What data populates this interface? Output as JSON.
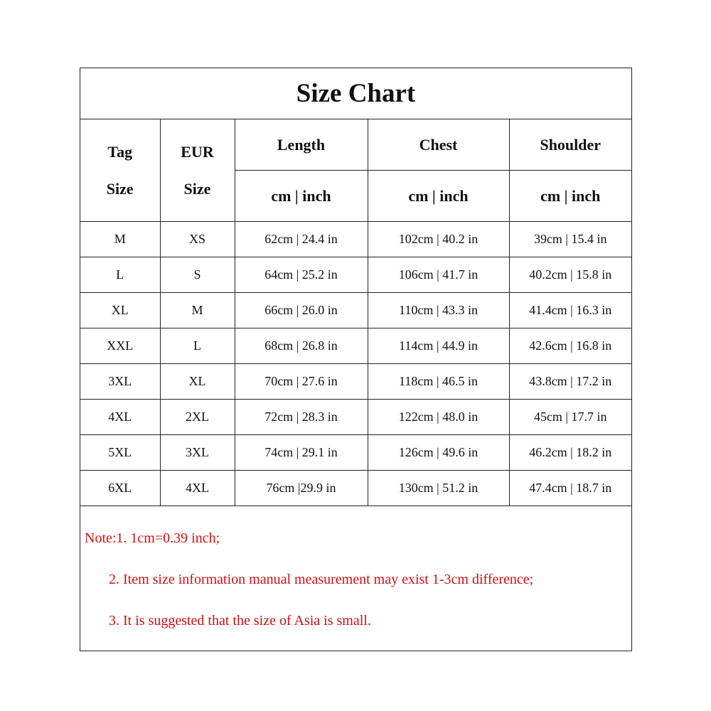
{
  "title": "Size Chart",
  "headers": {
    "tag_size": [
      "Tag",
      "Size"
    ],
    "eur_size": [
      "EUR",
      "Size"
    ],
    "length": "Length",
    "chest": "Chest",
    "shoulder": "Shoulder",
    "unit": "cm | inch"
  },
  "rows": [
    [
      "M",
      "XS",
      "62cm | 24.4 in",
      "102cm | 40.2 in",
      "39cm | 15.4 in"
    ],
    [
      "L",
      "S",
      "64cm | 25.2 in",
      "106cm | 41.7 in",
      "40.2cm | 15.8 in"
    ],
    [
      "XL",
      "M",
      "66cm | 26.0 in",
      "110cm | 43.3 in",
      "41.4cm | 16.3 in"
    ],
    [
      "XXL",
      "L",
      "68cm | 26.8 in",
      "114cm | 44.9 in",
      "42.6cm | 16.8 in"
    ],
    [
      "3XL",
      "XL",
      "70cm | 27.6 in",
      "118cm | 46.5 in",
      "43.8cm | 17.2 in"
    ],
    [
      "4XL",
      "2XL",
      "72cm | 28.3 in",
      "122cm | 48.0 in",
      "45cm | 17.7 in"
    ],
    [
      "5XL",
      "3XL",
      "74cm | 29.1 in",
      "126cm | 49.6 in",
      "46.2cm | 18.2 in"
    ],
    [
      "6XL",
      "4XL",
      "76cm |29.9 in",
      "130cm | 51.2 in",
      "47.4cm | 18.7 in"
    ]
  ],
  "notes": [
    "Note:1. 1cm=0.39 inch;",
    "2.  Item size information manual measurement may exist 1-3cm difference;",
    "3.  It is suggested that the size of Asia is small."
  ],
  "colors": {
    "note_text": "#d01010",
    "border": "#222222"
  }
}
